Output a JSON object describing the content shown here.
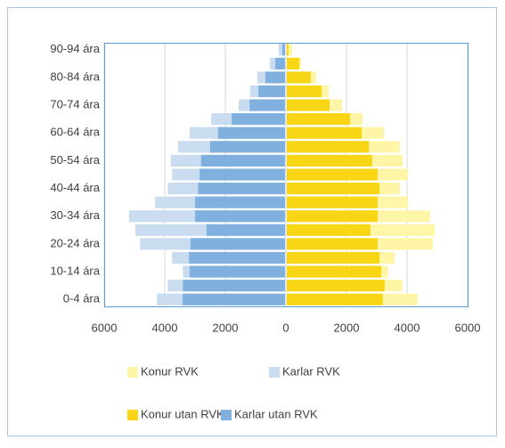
{
  "chart_data": {
    "type": "pyramid",
    "categories": [
      "0-4 ára",
      null,
      "10-14 ára",
      null,
      "20-24 ára",
      null,
      "30-34 ára",
      null,
      "40-44 ára",
      null,
      "50-54 ára",
      null,
      "60-64 ára",
      null,
      "70-74 ára",
      null,
      "80-84 ára",
      null,
      "90-94 ára"
    ],
    "series": [
      {
        "name": "Konur RVK",
        "color": "#fff5a6",
        "values": [
          4350,
          3850,
          3380,
          3590,
          4850,
          4910,
          4760,
          4030,
          3760,
          4030,
          3850,
          3760,
          3240,
          2530,
          1850,
          1410,
          1000,
          500,
          210
        ]
      },
      {
        "name": "Karlar RVK",
        "color": "#c9dcf0",
        "values": [
          -4260,
          -3900,
          -3400,
          -3760,
          -4820,
          -4970,
          -5180,
          -4320,
          -3900,
          -3760,
          -3800,
          -3560,
          -3180,
          -2470,
          -1560,
          -1180,
          -940,
          -530,
          -240
        ]
      },
      {
        "name": "Konur utan RVK",
        "color": "#f8d615",
        "values": [
          3200,
          3260,
          3150,
          3090,
          3030,
          2790,
          3030,
          3030,
          3090,
          3030,
          2850,
          2740,
          2500,
          2120,
          1440,
          1180,
          820,
          440,
          90
        ]
      },
      {
        "name": "Karlar utan RVK",
        "color": "#7fb0de",
        "values": [
          -3410,
          -3400,
          -3180,
          -3200,
          -3150,
          -2620,
          -3000,
          -3000,
          -2900,
          -2850,
          -2800,
          -2500,
          -2240,
          -1790,
          -1200,
          -910,
          -680,
          -350,
          -120
        ]
      }
    ],
    "xlim": [
      -6000,
      6000
    ],
    "xticks": [
      {
        "value": -6000,
        "label": "6000"
      },
      {
        "value": -4000,
        "label": "4000"
      },
      {
        "value": -2000,
        "label": "2000"
      },
      0,
      2000,
      4000,
      6000
    ],
    "grid": true
  }
}
